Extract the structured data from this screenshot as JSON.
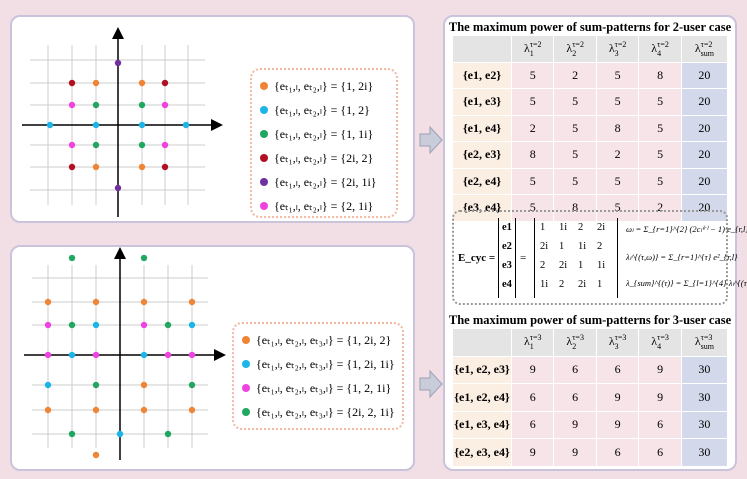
{
  "legend_2user": [
    {
      "label": "{eₜ₁,ₗ, eₜ₂,ₗ} = {1, 2i}",
      "color": "#ee8434"
    },
    {
      "label": "{eₜ₁,ₗ, eₜ₂,ₗ} = {1, 2}",
      "color": "#1cb5e8"
    },
    {
      "label": "{eₜ₁,ₗ, eₜ₂,ₗ} = {1, 1i}",
      "color": "#20a860"
    },
    {
      "label": "{eₜ₁,ₗ, eₜ₂,ₗ} = {2i, 2}",
      "color": "#b01020"
    },
    {
      "label": "{eₜ₁,ₗ, eₜ₂,ₗ} = {2i, 1i}",
      "color": "#7030a0"
    },
    {
      "label": "{eₜ₁,ₗ, eₜ₂,ₗ} = {2, 1i}",
      "color": "#ee44dd"
    }
  ],
  "legend_3user": [
    {
      "label": "{eₜ₁,ₗ, eₜ₂,ₗ, eₜ₃,ₗ} = {1, 2i, 2}",
      "color": "#ee8434"
    },
    {
      "label": "{eₜ₁,ₗ, eₜ₂,ₗ, eₜ₃,ₗ} = {1, 2i, 1i}",
      "color": "#1cb5e8"
    },
    {
      "label": "{eₜ₁,ₗ, eₜ₂,ₗ, eₜ₃,ₗ} = {1, 2, 1i}",
      "color": "#ee44dd"
    },
    {
      "label": "{eₜ₁,ₗ, eₜ₂,ₗ, eₜ₃,ₗ} = {2i, 2, 1i}",
      "color": "#20a860"
    }
  ],
  "table_2user": {
    "title": "The maximum power of sum-patterns for 2-user case",
    "headers": [
      {
        "base": "λ",
        "sub": "1",
        "sup": "τ=2"
      },
      {
        "base": "λ",
        "sub": "2",
        "sup": "τ=2"
      },
      {
        "base": "λ",
        "sub": "3",
        "sup": "τ=2"
      },
      {
        "base": "λ",
        "sub": "4",
        "sup": "τ=2"
      },
      {
        "base": "λ",
        "sub": "sum",
        "sup": "τ=2"
      }
    ],
    "rows": [
      {
        "label": "{e1, e2}",
        "values": [
          5,
          2,
          5,
          8,
          20
        ]
      },
      {
        "label": "{e1, e3}",
        "values": [
          5,
          5,
          5,
          5,
          20
        ]
      },
      {
        "label": "{e1, e4}",
        "values": [
          2,
          5,
          8,
          5,
          20
        ]
      },
      {
        "label": "{e2, e3}",
        "values": [
          8,
          5,
          2,
          5,
          20
        ]
      },
      {
        "label": "{e2, e4}",
        "values": [
          5,
          5,
          5,
          5,
          20
        ]
      },
      {
        "label": "{e3, e4}",
        "values": [
          5,
          8,
          5,
          2,
          20
        ]
      }
    ]
  },
  "table_3user": {
    "title": "The maximum power of sum-patterns for 3-user case",
    "headers": [
      {
        "base": "λ",
        "sub": "1",
        "sup": "τ=3"
      },
      {
        "base": "λ",
        "sub": "2",
        "sup": "τ=3"
      },
      {
        "base": "λ",
        "sub": "3",
        "sup": "τ=3"
      },
      {
        "base": "λ",
        "sub": "4",
        "sup": "τ=3"
      },
      {
        "base": "λ",
        "sub": "sum",
        "sup": "τ=3"
      }
    ],
    "rows": [
      {
        "label": "{e1, e2, e3}",
        "values": [
          9,
          6,
          6,
          9,
          30
        ]
      },
      {
        "label": "{e1, e2, e4}",
        "values": [
          6,
          6,
          9,
          9,
          30
        ]
      },
      {
        "label": "{e1, e3, e4}",
        "values": [
          6,
          9,
          9,
          6,
          30
        ]
      },
      {
        "label": "{e2, e3, e4}",
        "values": [
          9,
          9,
          6,
          6,
          30
        ]
      }
    ]
  },
  "matrix": {
    "lhs": "E_cyc =",
    "equals": "=",
    "vector": [
      "e1",
      "e2",
      "e3",
      "e4"
    ],
    "entries": [
      [
        "1",
        "1i",
        "2",
        "2i"
      ],
      [
        "2i",
        "1",
        "1i",
        "2"
      ],
      [
        "2",
        "2i",
        "1",
        "1i"
      ],
      [
        "1i",
        "2",
        "2i",
        "1"
      ]
    ]
  },
  "formulas": [
    "ωₗ = Σ_{r=1}^{2} (2cₗ⁽ʳ⁾ − 1)·e_{r,l}",
    "λₗ^{(τ,ω)} = Σ_{r=1}^{τ} e²_{r,l}",
    "λ_{sum}^{(τ)} = Σ_{l=1}^{4} λₗ^{(τ,ω)}"
  ]
}
